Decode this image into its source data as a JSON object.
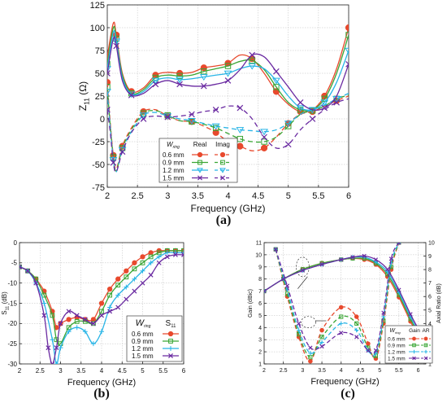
{
  "panels": [
    {
      "label": "(a)"
    },
    {
      "label": "(b)"
    },
    {
      "label": "(c)"
    }
  ],
  "chart_data": [
    {
      "panel": "(a)",
      "type": "line",
      "xlabel": "Frequency (GHz)",
      "ylabel": "Z",
      "ylabel_sub": "11",
      "ylabel_unit": " (Ω)",
      "xlim": [
        2,
        6
      ],
      "ylim": [
        -75,
        125
      ],
      "xticks": [
        2,
        2.5,
        3,
        3.5,
        4,
        4.5,
        5,
        5.5,
        6
      ],
      "yticks": [
        -75,
        -50,
        -25,
        0,
        25,
        50,
        75,
        100,
        125
      ],
      "grid": true,
      "legend": {
        "placement": "center-bottom",
        "param_symbol": "W",
        "param_sub": "ring",
        "columns": [
          "Real",
          "Imag"
        ],
        "entries": [
          "0.6 mm",
          "0.9 mm",
          "1.2 mm",
          "1.5 mm"
        ]
      },
      "series": [
        {
          "name": "0.6 mm",
          "color": "#e8492d",
          "marker": "circle",
          "real": {
            "x": [
              2.0,
              2.1,
              2.15,
              2.25,
              2.4,
              2.6,
              2.8,
              3.0,
              3.2,
              3.4,
              3.6,
              3.8,
              4.0,
              4.2,
              4.4,
              4.6,
              4.8,
              5.0,
              5.2,
              5.4,
              5.6,
              5.8,
              6.0
            ],
            "y": [
              68,
              105,
              92,
              50,
              30,
              34,
              48,
              51,
              50,
              51,
              56,
              58,
              61,
              70,
              66,
              50,
              30,
              16,
              8,
              10,
              25,
              55,
              100
            ]
          },
          "imag": {
            "x": [
              2.0,
              2.05,
              2.1,
              2.15,
              2.25,
              2.4,
              2.6,
              2.8,
              3.0,
              3.2,
              3.4,
              3.6,
              3.8,
              4.0,
              4.2,
              4.4,
              4.6,
              4.8,
              5.0,
              5.2,
              5.4,
              5.6,
              5.8,
              6.0
            ],
            "y": [
              40,
              -5,
              -40,
              -55,
              -30,
              -10,
              8,
              10,
              3,
              -2,
              -3,
              -8,
              -15,
              -25,
              -30,
              -35,
              -32,
              -20,
              -5,
              5,
              8,
              14,
              20,
              25
            ]
          }
        },
        {
          "name": "0.9 mm",
          "color": "#3aa635",
          "marker": "square",
          "real": {
            "x": [
              2.0,
              2.1,
              2.15,
              2.25,
              2.4,
              2.6,
              2.8,
              3.0,
              3.2,
              3.4,
              3.6,
              3.8,
              4.0,
              4.2,
              4.4,
              4.6,
              4.8,
              5.0,
              5.2,
              5.4,
              5.6,
              5.8,
              6.0
            ],
            "y": [
              60,
              100,
              88,
              48,
              28,
              32,
              45,
              48,
              47,
              48,
              52,
              55,
              58,
              63,
              64,
              54,
              35,
              18,
              10,
              10,
              22,
              50,
              92
            ]
          },
          "imag": {
            "x": [
              2.0,
              2.05,
              2.1,
              2.15,
              2.25,
              2.4,
              2.6,
              2.8,
              3.0,
              3.2,
              3.4,
              3.6,
              3.8,
              4.0,
              4.2,
              4.4,
              4.6,
              4.8,
              5.0,
              5.2,
              5.4,
              5.6,
              5.8,
              6.0
            ],
            "y": [
              35,
              -8,
              -42,
              -57,
              -32,
              -12,
              6,
              9,
              4,
              -2,
              -3,
              -6,
              -10,
              -16,
              -22,
              -25,
              -25,
              -20,
              -8,
              5,
              9,
              14,
              22,
              26
            ]
          }
        },
        {
          "name": "1.2 mm",
          "color": "#27b4e6",
          "marker": "triangle-down",
          "real": {
            "x": [
              2.0,
              2.1,
              2.15,
              2.25,
              2.4,
              2.6,
              2.8,
              3.0,
              3.2,
              3.4,
              3.6,
              3.8,
              4.0,
              4.2,
              4.4,
              4.6,
              4.8,
              5.0,
              5.2,
              5.4,
              5.6,
              5.8,
              6.0
            ],
            "y": [
              55,
              95,
              85,
              45,
              27,
              30,
              42,
              45,
              43,
              44,
              46,
              48,
              50,
              55,
              58,
              55,
              42,
              25,
              12,
              10,
              18,
              40,
              75
            ]
          },
          "imag": {
            "x": [
              2.0,
              2.05,
              2.1,
              2.15,
              2.25,
              2.4,
              2.6,
              2.8,
              3.0,
              3.2,
              3.4,
              3.6,
              3.8,
              4.0,
              4.2,
              4.4,
              4.6,
              4.8,
              5.0,
              5.2,
              5.4,
              5.6,
              5.8,
              6.0
            ],
            "y": [
              30,
              -10,
              -45,
              -58,
              -34,
              -14,
              4,
              7,
              3,
              0,
              -2,
              -5,
              -8,
              -10,
              -12,
              -13,
              -14,
              -12,
              -5,
              5,
              10,
              15,
              22,
              28
            ]
          }
        },
        {
          "name": "1.5 mm",
          "color": "#6a2aa1",
          "marker": "x",
          "real": {
            "x": [
              2.0,
              2.1,
              2.15,
              2.25,
              2.4,
              2.6,
              2.8,
              3.0,
              3.2,
              3.4,
              3.6,
              3.8,
              4.0,
              4.2,
              4.4,
              4.6,
              4.8,
              5.0,
              5.2,
              5.4,
              5.6,
              5.8,
              6.0
            ],
            "y": [
              50,
              88,
              80,
              42,
              26,
              28,
              38,
              42,
              38,
              36,
              36,
              38,
              42,
              54,
              70,
              68,
              52,
              35,
              18,
              10,
              12,
              25,
              60
            ]
          },
          "imag": {
            "x": [
              2.0,
              2.05,
              2.1,
              2.15,
              2.25,
              2.4,
              2.6,
              2.8,
              3.0,
              3.2,
              3.4,
              3.6,
              3.8,
              4.0,
              4.2,
              4.4,
              4.6,
              4.8,
              5.0,
              5.2,
              5.4,
              5.6,
              5.8,
              6.0
            ],
            "y": [
              10,
              -15,
              -48,
              -58,
              -36,
              -15,
              0,
              3,
              2,
              3,
              5,
              8,
              10,
              14,
              12,
              0,
              -20,
              -32,
              -28,
              -12,
              0,
              10,
              18,
              22
            ]
          }
        }
      ]
    },
    {
      "panel": "(b)",
      "type": "line",
      "xlabel": "Frequency (GHz)",
      "ylabel": "S",
      "ylabel_sub": "11",
      "ylabel_unit": " (dB)",
      "xlim": [
        2,
        6
      ],
      "ylim": [
        -30,
        0
      ],
      "xticks": [
        2,
        2.5,
        3,
        3.5,
        4,
        4.5,
        5,
        5.5,
        6
      ],
      "yticks": [
        -30,
        -25,
        -20,
        -15,
        -10,
        -5,
        0
      ],
      "grid": true,
      "legend": {
        "placement": "bottom-right",
        "param_symbol": "W",
        "param_sub": "ring",
        "column_symbol": "S",
        "column_sub": "11",
        "entries": [
          "0.6 mm",
          "0.9 mm",
          "1.2 mm",
          "1.5 mm"
        ]
      },
      "series": [
        {
          "name": "0.6 mm",
          "color": "#e8492d",
          "marker": "circle",
          "x": [
            2.0,
            2.2,
            2.4,
            2.6,
            2.8,
            2.9,
            3.0,
            3.2,
            3.4,
            3.6,
            3.8,
            4.0,
            4.2,
            4.4,
            4.6,
            4.8,
            5.0,
            5.2,
            5.4,
            5.6,
            5.8,
            6.0
          ],
          "y": [
            -6,
            -7,
            -9,
            -12,
            -17,
            -21,
            -20,
            -19,
            -18.5,
            -19,
            -19,
            -15,
            -11.5,
            -9,
            -7,
            -5,
            -3.5,
            -2.5,
            -2,
            -2,
            -2,
            -2
          ]
        },
        {
          "name": "0.9 mm",
          "color": "#3aa635",
          "marker": "square",
          "x": [
            2.0,
            2.2,
            2.4,
            2.6,
            2.8,
            2.9,
            3.0,
            3.2,
            3.4,
            3.6,
            3.8,
            4.0,
            4.2,
            4.4,
            4.6,
            4.8,
            5.0,
            5.2,
            5.4,
            5.6,
            5.8,
            6.0
          ],
          "y": [
            -6,
            -7,
            -9,
            -13,
            -18,
            -24,
            -25,
            -21,
            -19.5,
            -19.5,
            -20,
            -17,
            -13,
            -10.5,
            -8.5,
            -6.5,
            -5,
            -3.5,
            -2.5,
            -2,
            -2,
            -2
          ]
        },
        {
          "name": "1.2 mm",
          "color": "#27b4e6",
          "marker": "plus",
          "x": [
            2.0,
            2.2,
            2.4,
            2.6,
            2.8,
            2.9,
            3.0,
            3.2,
            3.4,
            3.6,
            3.8,
            4.0,
            4.2,
            4.4,
            4.6,
            4.8,
            5.0,
            5.2,
            5.4,
            5.6,
            5.8,
            6.0
          ],
          "y": [
            -6,
            -7,
            -10,
            -15,
            -24,
            -30,
            -26,
            -22,
            -21,
            -22,
            -25,
            -22,
            -16,
            -13,
            -11,
            -9,
            -7,
            -5,
            -3.5,
            -2.5,
            -2.5,
            -2.5
          ]
        },
        {
          "name": "1.5 mm",
          "color": "#6a2aa1",
          "marker": "x",
          "x": [
            2.0,
            2.2,
            2.4,
            2.6,
            2.7,
            2.8,
            2.9,
            3.0,
            3.2,
            3.4,
            3.6,
            3.8,
            4.0,
            4.2,
            4.4,
            4.6,
            4.8,
            5.0,
            5.2,
            5.4,
            5.6,
            5.8,
            6.0
          ],
          "y": [
            -6,
            -7,
            -10,
            -18,
            -26,
            -30,
            -26,
            -20,
            -17,
            -18,
            -19,
            -20,
            -18,
            -17,
            -16,
            -14,
            -12,
            -10,
            -8,
            -5,
            -3.5,
            -3,
            -3
          ]
        }
      ]
    },
    {
      "panel": "(c)",
      "type": "line",
      "xlabel": "Frequency (GHz)",
      "ylabel": "Gain (dBic)",
      "y2label": "Axial Ratio (dB)",
      "xlim": [
        2,
        6.2
      ],
      "ylim": [
        1,
        11
      ],
      "y2lim": [
        1,
        10
      ],
      "xticks": [
        2,
        2.5,
        3,
        3.5,
        4,
        4.5,
        5,
        5.5,
        6
      ],
      "yticks": [
        1,
        2,
        3,
        4,
        5,
        6,
        7,
        8,
        9,
        10,
        11
      ],
      "y2ticks": [
        1,
        2,
        3,
        4,
        5,
        6,
        7,
        8,
        9,
        10
      ],
      "grid": true,
      "legend": {
        "placement": "bottom-right",
        "param_symbol": "W",
        "param_sub": "ring",
        "columns": [
          "Gain",
          "AR"
        ],
        "entries": [
          "0.6 mm",
          "0.9 mm",
          "1.2 mm",
          "1.5 mm"
        ]
      },
      "series": [
        {
          "name": "0.6 mm",
          "color": "#e8492d",
          "marker": "circle",
          "gain": {
            "x": [
              2.0,
              2.5,
              3.0,
              3.5,
              4.0,
              4.3,
              4.6,
              4.9,
              5.2,
              5.5,
              5.8,
              6.0,
              6.2
            ],
            "y": [
              7.0,
              8.0,
              8.8,
              9.3,
              9.6,
              9.7,
              9.6,
              9.2,
              8.2,
              6.5,
              4.5,
              3.3,
              2.0
            ]
          },
          "ar": {
            "x": [
              2.3,
              2.6,
              2.9,
              3.2,
              3.5,
              4.0,
              4.4,
              4.7,
              4.9,
              5.1,
              5.3,
              5.5
            ],
            "y": [
              9.5,
              6.0,
              3.0,
              1.2,
              3.5,
              5.2,
              4.5,
              2.5,
              1.4,
              4.0,
              8.0,
              10
            ]
          }
        },
        {
          "name": "0.9 mm",
          "color": "#3aa635",
          "marker": "square",
          "gain": {
            "x": [
              2.0,
              2.5,
              3.0,
              3.5,
              4.0,
              4.3,
              4.6,
              4.9,
              5.2,
              5.5,
              5.8,
              6.0,
              6.2
            ],
            "y": [
              7.0,
              8.0,
              8.8,
              9.3,
              9.6,
              9.7,
              9.7,
              9.3,
              8.4,
              6.7,
              4.7,
              3.5,
              2.2
            ]
          },
          "ar": {
            "x": [
              2.3,
              2.6,
              2.9,
              3.2,
              3.5,
              4.0,
              4.4,
              4.7,
              4.9,
              5.1,
              5.3,
              5.5
            ],
            "y": [
              9.5,
              6.2,
              3.2,
              1.5,
              3.0,
              4.5,
              4.0,
              2.2,
              1.6,
              4.2,
              8.2,
              10
            ]
          }
        },
        {
          "name": "1.2 mm",
          "color": "#27b4e6",
          "marker": "plus",
          "gain": {
            "x": [
              2.0,
              2.5,
              3.0,
              3.5,
              4.0,
              4.3,
              4.6,
              4.9,
              5.2,
              5.5,
              5.8,
              6.0,
              6.2
            ],
            "y": [
              7.0,
              8.0,
              8.7,
              9.2,
              9.6,
              9.8,
              9.8,
              9.4,
              8.6,
              6.9,
              4.9,
              3.7,
              2.4
            ]
          },
          "ar": {
            "x": [
              2.3,
              2.6,
              2.9,
              3.2,
              3.5,
              4.0,
              4.4,
              4.7,
              4.9,
              5.1,
              5.3,
              5.5
            ],
            "y": [
              9.5,
              6.5,
              3.5,
              1.8,
              2.6,
              4.0,
              3.5,
              2.0,
              1.8,
              4.5,
              8.5,
              10
            ]
          }
        },
        {
          "name": "1.5 mm",
          "color": "#6a2aa1",
          "marker": "x",
          "gain": {
            "x": [
              2.0,
              2.5,
              3.0,
              3.5,
              4.0,
              4.3,
              4.6,
              4.9,
              5.2,
              5.5,
              5.8,
              6.0,
              6.2
            ],
            "y": [
              7.0,
              8.0,
              8.7,
              9.2,
              9.6,
              9.8,
              9.9,
              9.6,
              8.8,
              7.1,
              5.1,
              3.9,
              2.6
            ]
          },
          "ar": {
            "x": [
              2.3,
              2.6,
              2.9,
              3.2,
              3.5,
              4.0,
              4.4,
              4.7,
              4.9,
              5.1,
              5.3,
              5.5
            ],
            "y": [
              9.5,
              6.8,
              4.0,
              2.2,
              2.3,
              3.3,
              3.0,
              2.0,
              2.0,
              4.8,
              8.8,
              10
            ]
          }
        }
      ]
    }
  ]
}
